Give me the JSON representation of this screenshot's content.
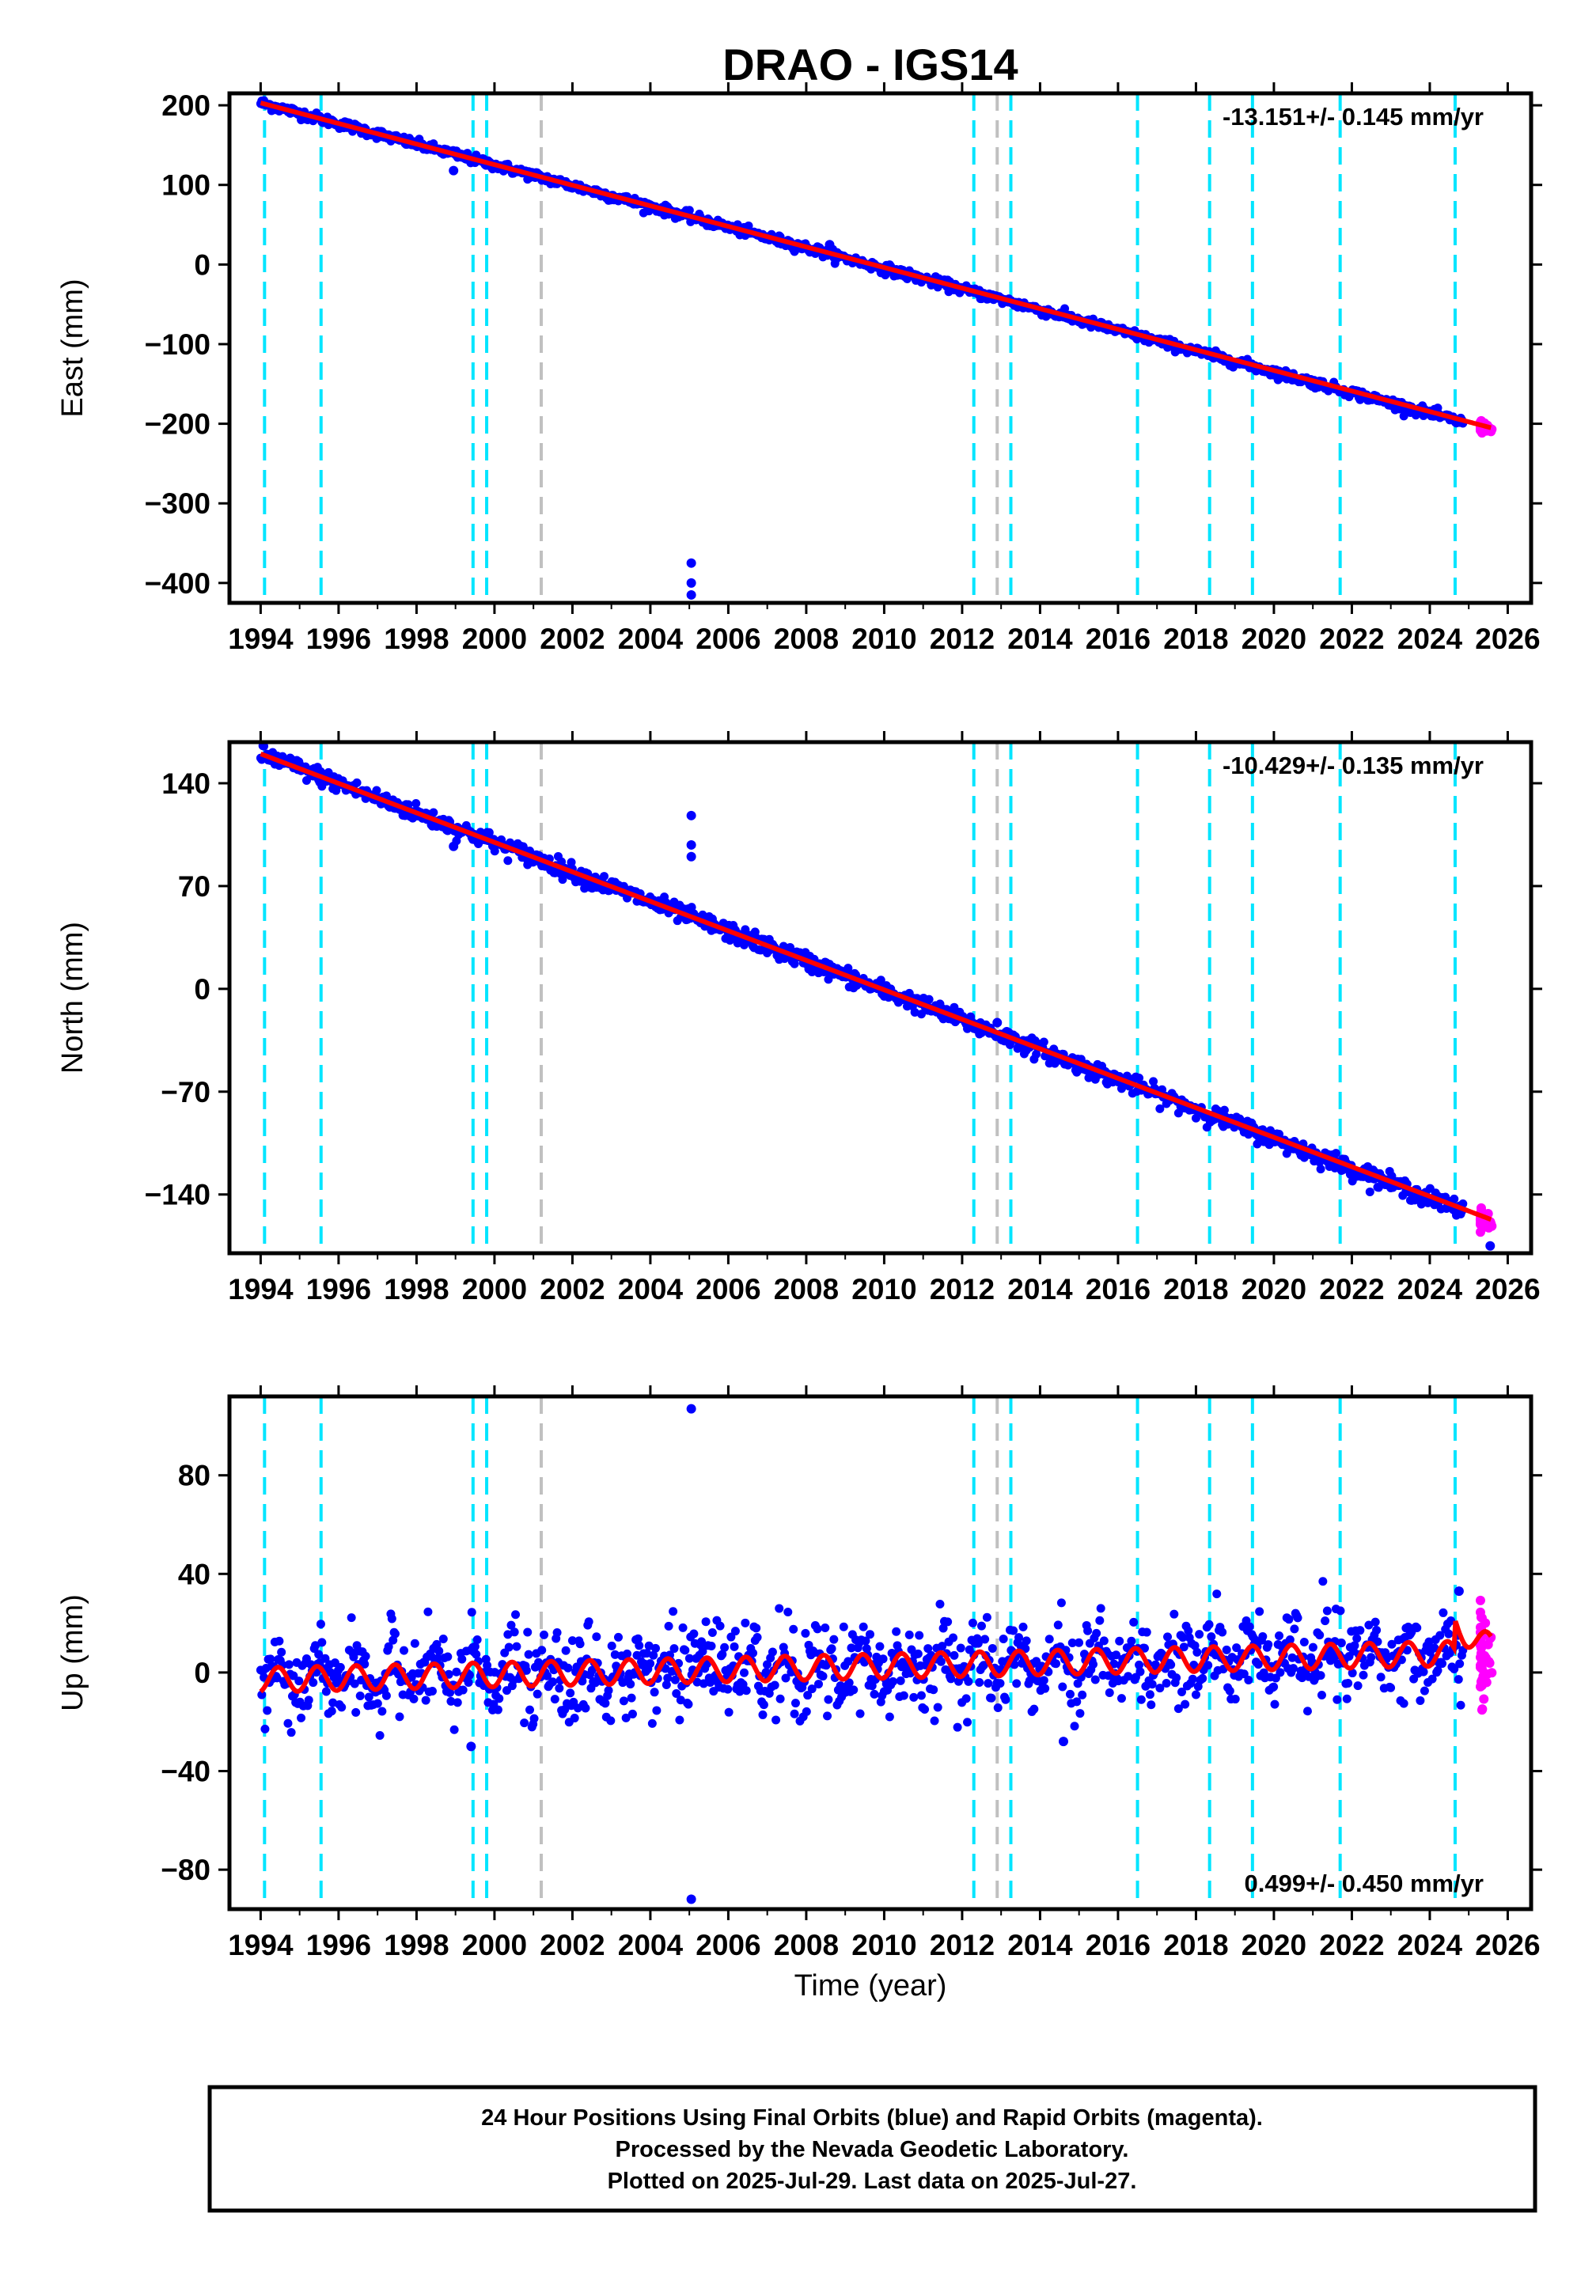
{
  "title": "DRAO - IGS14",
  "colors": {
    "final": "#0000ff",
    "rapid": "#ff00ff",
    "model": "#ff0000",
    "equipment_change": "#00e5ff",
    "other_event": "#c0c0c0"
  },
  "chart_data": [
    {
      "type": "scatter",
      "component": "east",
      "ylabel": "East (mm)",
      "xlim": [
        1993.2,
        2026.6
      ],
      "ylim": [
        -425,
        215
      ],
      "xticks": [
        1994,
        1996,
        1998,
        2000,
        2002,
        2004,
        2006,
        2008,
        2010,
        2012,
        2014,
        2016,
        2018,
        2020,
        2022,
        2024,
        2026
      ],
      "yticks": [
        200,
        100,
        0,
        -100,
        -200,
        -300,
        -400
      ],
      "rate_label": "-13.151+/- 0.145 mm/yr",
      "rate_position": "top-right",
      "model": {
        "start": 1994.0,
        "end": 2025.57,
        "y_start": 203,
        "y_end": -205,
        "seasonal_amp": 0
      },
      "final_points": {
        "start": 1994.0,
        "end": 2024.85,
        "y_start": 203,
        "y_end": -198,
        "scatter": 3
      },
      "rapid_points": {
        "start": 2024.85,
        "end": 2025.57,
        "y_start": -200,
        "y_end": -208,
        "scatter": 3
      },
      "outliers": [
        {
          "x": 1998.95,
          "y": 118
        },
        {
          "x": 2005.05,
          "y": -375
        },
        {
          "x": 2005.05,
          "y": -400
        },
        {
          "x": 2005.05,
          "y": -415
        },
        {
          "x": 2008.6,
          "y": 25
        }
      ]
    },
    {
      "type": "scatter",
      "component": "north",
      "ylabel": "North (mm)",
      "xlim": [
        1993.2,
        2026.6
      ],
      "ylim": [
        -180,
        168
      ],
      "xticks": [
        1994,
        1996,
        1998,
        2000,
        2002,
        2004,
        2006,
        2008,
        2010,
        2012,
        2014,
        2016,
        2018,
        2020,
        2022,
        2024,
        2026
      ],
      "yticks": [
        140,
        70,
        0,
        -70,
        -140
      ],
      "rate_label": "-10.429+/- 0.135 mm/yr",
      "rate_position": "top-right",
      "model": {
        "start": 1994.0,
        "end": 2025.57,
        "y_start": 160,
        "y_end": -157,
        "seasonal_amp": 0
      },
      "final_points": {
        "start": 1994.0,
        "end": 2024.85,
        "y_start": 160,
        "y_end": -151,
        "scatter": 3
      },
      "rapid_points": {
        "start": 2024.85,
        "end": 2025.57,
        "y_start": -153,
        "y_end": -160,
        "scatter": 3
      },
      "outliers": [
        {
          "x": 1998.95,
          "y": 97
        },
        {
          "x": 2005.05,
          "y": 118
        },
        {
          "x": 2005.05,
          "y": 98
        },
        {
          "x": 2005.05,
          "y": 90
        },
        {
          "x": 2012.9,
          "y": -23
        },
        {
          "x": 2025.55,
          "y": -175
        }
      ]
    },
    {
      "type": "scatter",
      "component": "up",
      "ylabel": "Up (mm)",
      "xlim": [
        1993.2,
        2026.6
      ],
      "ylim": [
        -96,
        112
      ],
      "xticks": [
        1994,
        1996,
        1998,
        2000,
        2002,
        2004,
        2006,
        2008,
        2010,
        2012,
        2014,
        2016,
        2018,
        2020,
        2022,
        2024,
        2026
      ],
      "yticks": [
        80,
        40,
        0,
        -40,
        -80
      ],
      "rate_label": "0.499+/- 0.450 mm/yr",
      "rate_position": "bottom-right",
      "model": {
        "start": 1994.0,
        "end": 2025.57,
        "y_start": -3,
        "y_end": 8,
        "seasonal_amp": 5
      },
      "final_points": {
        "start": 1994.0,
        "end": 2024.85,
        "y_start": -3,
        "y_end": 8,
        "scatter": 8
      },
      "rapid_points": {
        "start": 2024.85,
        "end": 2025.57,
        "y_start": 10,
        "y_end": 5,
        "scatter": 10
      },
      "outliers": [
        {
          "x": 2005.05,
          "y": 107
        },
        {
          "x": 2005.05,
          "y": -92
        },
        {
          "x": 1999.4,
          "y": -30
        },
        {
          "x": 2014.6,
          "y": -28
        },
        {
          "x": 2024.75,
          "y": 33
        }
      ]
    }
  ],
  "events": [
    {
      "x": 1994.1,
      "kind": "equipment_change"
    },
    {
      "x": 1995.55,
      "kind": "equipment_change"
    },
    {
      "x": 1999.45,
      "kind": "equipment_change"
    },
    {
      "x": 1999.8,
      "kind": "equipment_change"
    },
    {
      "x": 2001.2,
      "kind": "other_event"
    },
    {
      "x": 2012.3,
      "kind": "equipment_change"
    },
    {
      "x": 2012.9,
      "kind": "other_event"
    },
    {
      "x": 2013.25,
      "kind": "equipment_change"
    },
    {
      "x": 2016.5,
      "kind": "equipment_change"
    },
    {
      "x": 2018.35,
      "kind": "equipment_change"
    },
    {
      "x": 2019.45,
      "kind": "equipment_change"
    },
    {
      "x": 2021.7,
      "kind": "equipment_change"
    },
    {
      "x": 2024.65,
      "kind": "equipment_change"
    }
  ],
  "xlabel": "Time (year)",
  "footer": {
    "line1": "24 Hour Positions Using Final Orbits (blue) and Rapid Orbits (magenta).",
    "line2": "Processed by the Nevada Geodetic Laboratory.",
    "line3": "Plotted on 2025-Jul-29. Last data on 2025-Jul-27."
  }
}
